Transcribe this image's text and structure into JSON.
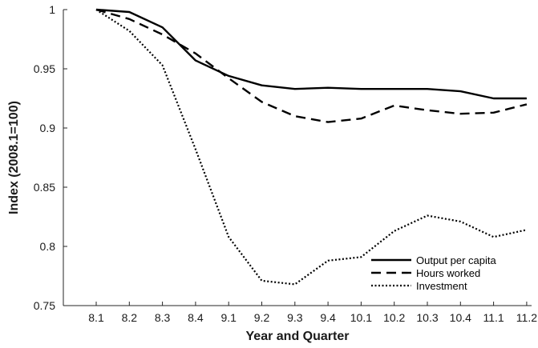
{
  "chart_data": {
    "type": "line",
    "title": "",
    "xlabel": "Year and Quarter",
    "ylabel": "Index (2008.1=100)",
    "categories": [
      "8.1",
      "8.2",
      "8.3",
      "8.4",
      "9.1",
      "9.2",
      "9.3",
      "9.4",
      "10.1",
      "10.2",
      "10.3",
      "10.4",
      "11.1",
      "11.2"
    ],
    "ylim": [
      0.75,
      1.0
    ],
    "yticks": [
      "0.75",
      "0.8",
      "0.85",
      "0.9",
      "0.95",
      "1"
    ],
    "legend_position": "bottom-right",
    "grid": false,
    "series": [
      {
        "name": "Output per capita",
        "style": "solid",
        "color": "#000000",
        "values": [
          1.0,
          0.998,
          0.985,
          0.957,
          0.944,
          0.936,
          0.933,
          0.934,
          0.933,
          0.933,
          0.933,
          0.931,
          0.925,
          0.925
        ]
      },
      {
        "name": "Hours worked",
        "style": "dashed",
        "color": "#000000",
        "values": [
          1.0,
          0.992,
          0.979,
          0.963,
          0.942,
          0.922,
          0.91,
          0.905,
          0.908,
          0.919,
          0.915,
          0.912,
          0.913,
          0.92
        ]
      },
      {
        "name": "Investment",
        "style": "dotted",
        "color": "#000000",
        "values": [
          1.0,
          0.982,
          0.953,
          0.882,
          0.808,
          0.771,
          0.768,
          0.788,
          0.791,
          0.813,
          0.826,
          0.821,
          0.808,
          0.814
        ]
      }
    ]
  }
}
